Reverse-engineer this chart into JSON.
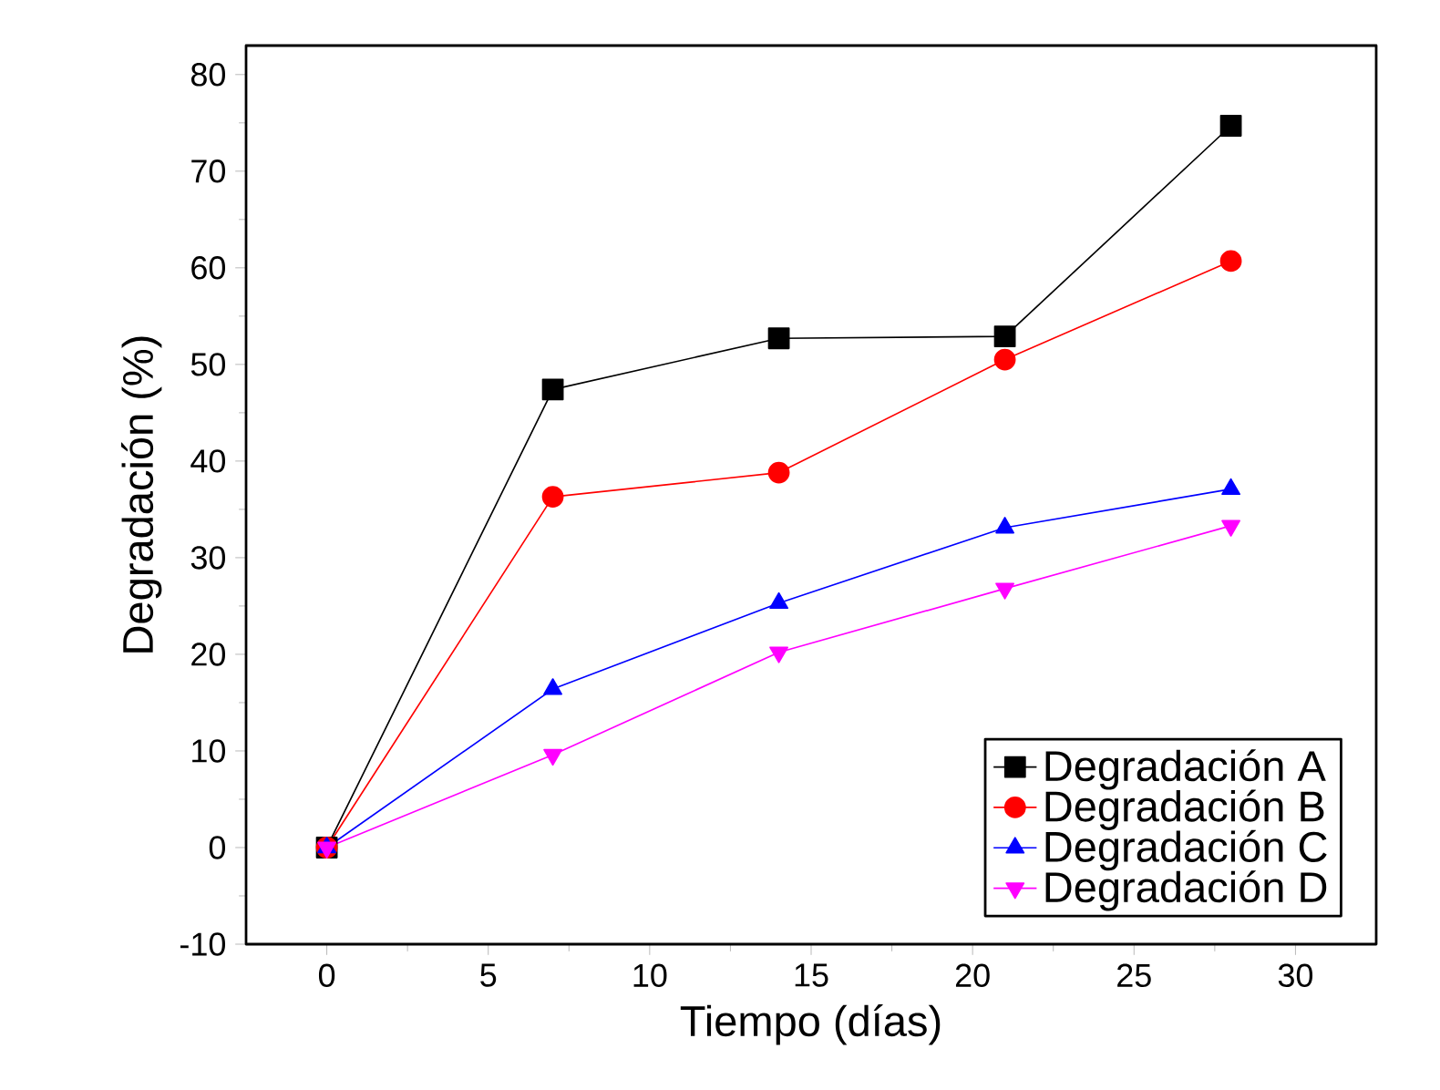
{
  "chart_data": {
    "type": "line",
    "xlabel": "Tiempo (días)",
    "ylabel": "Degradación     (%)",
    "x": [
      0,
      7,
      14,
      21,
      28
    ],
    "series": [
      {
        "name": "Degradación A",
        "color": "#000000",
        "marker": "square",
        "values": [
          0,
          47.4,
          52.7,
          52.9,
          74.7
        ]
      },
      {
        "name": "Degradación B",
        "color": "#ff0000",
        "marker": "circle",
        "values": [
          0,
          36.3,
          38.8,
          50.5,
          60.7
        ]
      },
      {
        "name": "Degradación C",
        "color": "#0000ff",
        "marker": "triangle",
        "values": [
          0,
          16.4,
          25.3,
          33.1,
          37.1
        ]
      },
      {
        "name": "Degradación D",
        "color": "#ff00ff",
        "marker": "triangle down",
        "values": [
          0,
          9.6,
          20.2,
          26.8,
          33.3
        ]
      }
    ],
    "xlim": [
      -2.5,
      32.5
    ],
    "ylim": [
      -10,
      83
    ],
    "xticks": [
      0,
      5,
      10,
      15,
      20,
      25,
      30
    ],
    "yticks": [
      -10,
      0,
      10,
      20,
      30,
      40,
      50,
      60,
      70,
      80
    ],
    "grid": false,
    "legend": "bottom right",
    "line_style": "solid"
  }
}
